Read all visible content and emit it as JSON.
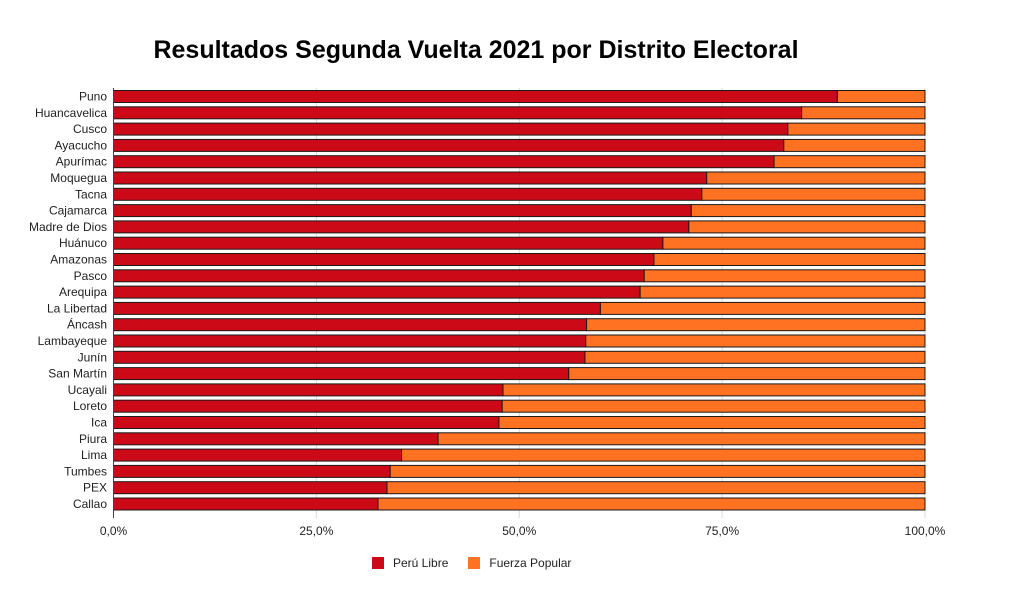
{
  "chart_data": {
    "type": "bar",
    "orientation": "horizontal",
    "stacked": "percent",
    "title": "Resultados Segunda Vuelta 2021 por Distrito Electoral",
    "xlabel": "",
    "ylabel": "",
    "xlim": [
      0,
      100
    ],
    "x_ticks": [
      "0,0%",
      "25,0%",
      "50,0%",
      "75,0%",
      "100,0%"
    ],
    "x_tick_values": [
      0,
      25,
      50,
      75,
      100
    ],
    "grid": true,
    "legend_position": "bottom",
    "categories": [
      "Puno",
      "Huancavelica",
      "Cusco",
      "Ayacucho",
      "Apurímac",
      "Moquegua",
      "Tacna",
      "Cajamarca",
      "Madre de Dios",
      "Huánuco",
      "Amazonas",
      "Pasco",
      "Arequipa",
      "La Libertad",
      "Áncash",
      "Lambayeque",
      "Junín",
      "San Martín",
      "Ucayali",
      "Loreto",
      "Ica",
      "Piura",
      "Lima",
      "Tumbes",
      "PEX",
      "Callao"
    ],
    "series": [
      {
        "name": "Perú Libre",
        "color": "#cc0a17",
        "values": [
          89.2,
          84.8,
          83.1,
          82.6,
          81.4,
          73.1,
          72.5,
          71.2,
          70.9,
          67.7,
          66.6,
          65.4,
          64.9,
          60.0,
          58.3,
          58.2,
          58.1,
          56.1,
          48.0,
          47.9,
          47.5,
          40.0,
          35.5,
          34.1,
          33.7,
          32.6
        ]
      },
      {
        "name": "Fuerza Popular",
        "color": "#ff7222",
        "values": [
          10.8,
          15.2,
          16.9,
          17.4,
          18.6,
          26.9,
          27.5,
          28.8,
          29.1,
          32.3,
          33.4,
          34.6,
          35.1,
          40.0,
          41.7,
          41.8,
          41.9,
          43.9,
          52.0,
          52.1,
          52.5,
          60.0,
          64.5,
          65.9,
          66.3,
          67.4
        ]
      }
    ]
  }
}
